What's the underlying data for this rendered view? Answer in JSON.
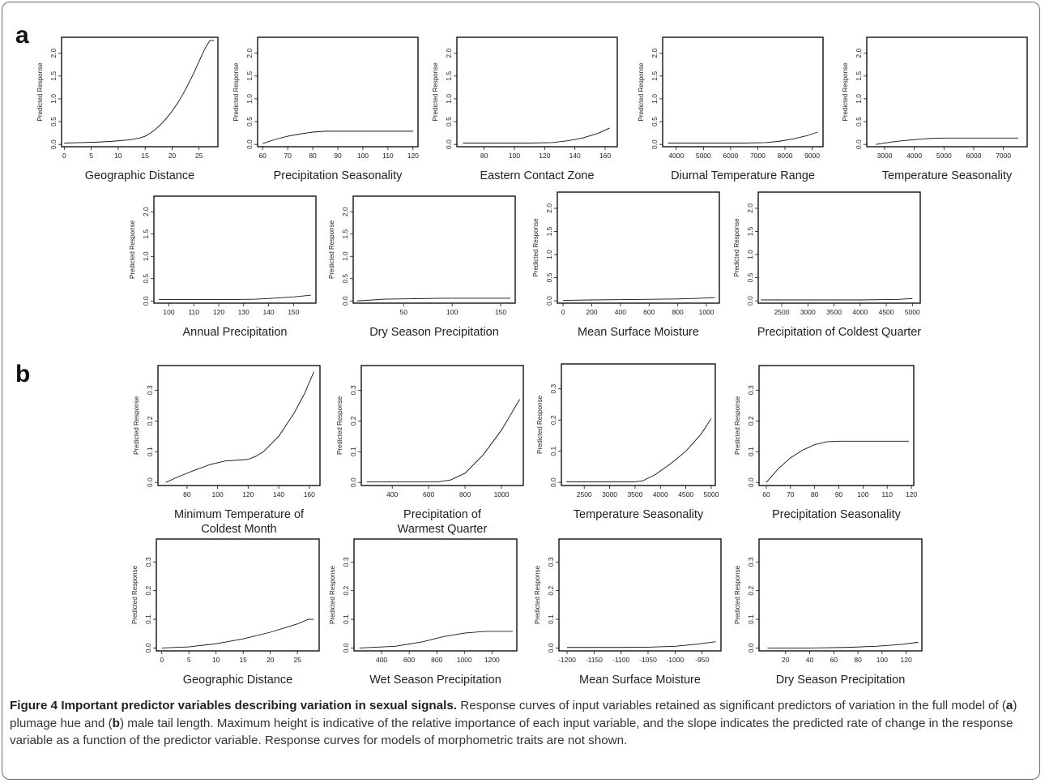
{
  "figure": {
    "panel_letters": [
      "a",
      "b"
    ],
    "caption": {
      "label": "Figure 4",
      "title": "Important predictor variables describing variation in sexual signals.",
      "text_parts": [
        "Response curves of input variables retained as significant predictors of variation in the full model of (",
        "a",
        ") plumage hue and (",
        "b",
        ") male tail length. Maximum height is indicative of the relative importance of each input variable, and the slope indicates the predicted rate of change in the response variable as a function of the predictor variable. Response curves for models of morphometric traits are not shown."
      ]
    }
  },
  "chart_data": [
    {
      "panel": "a",
      "type": "line",
      "xlabel": "Geographic Distance",
      "ylabel": "Predicted Response",
      "xticks": [
        0,
        5,
        10,
        15,
        20,
        25
      ],
      "xlim": [
        -0.5,
        28.5
      ],
      "yticks": [
        0.0,
        0.5,
        1.0,
        1.5,
        2.0
      ],
      "ylim": [
        -0.05,
        2.35
      ],
      "x": [
        0,
        3,
        6,
        9,
        12,
        14,
        15,
        16,
        17,
        18,
        19,
        20,
        21,
        22,
        23,
        24,
        25,
        26,
        27,
        27.8
      ],
      "y": [
        0.03,
        0.04,
        0.05,
        0.07,
        0.1,
        0.14,
        0.18,
        0.25,
        0.34,
        0.45,
        0.58,
        0.73,
        0.9,
        1.1,
        1.32,
        1.56,
        1.82,
        2.08,
        2.28,
        2.28
      ]
    },
    {
      "panel": "a",
      "type": "line",
      "xlabel": "Precipitation Seasonality",
      "ylabel": "Predicted Response",
      "xticks": [
        60,
        70,
        80,
        90,
        100,
        110,
        120
      ],
      "xlim": [
        58,
        122
      ],
      "yticks": [
        0.0,
        0.5,
        1.0,
        1.5,
        2.0
      ],
      "ylim": [
        -0.05,
        2.35
      ],
      "x": [
        60,
        65,
        70,
        75,
        80,
        85,
        90,
        100,
        110,
        120
      ],
      "y": [
        0.02,
        0.11,
        0.18,
        0.23,
        0.27,
        0.29,
        0.29,
        0.29,
        0.29,
        0.29
      ]
    },
    {
      "panel": "a",
      "type": "line",
      "xlabel": "Eastern Contact Zone",
      "ylabel": "Predicted Response",
      "xticks": [
        80,
        100,
        120,
        140,
        160
      ],
      "xlim": [
        62,
        168
      ],
      "yticks": [
        0.0,
        0.5,
        1.0,
        1.5,
        2.0
      ],
      "ylim": [
        -0.05,
        2.35
      ],
      "x": [
        66,
        90,
        110,
        125,
        135,
        145,
        155,
        163
      ],
      "y": [
        0.03,
        0.03,
        0.03,
        0.04,
        0.08,
        0.14,
        0.24,
        0.36
      ]
    },
    {
      "panel": "a",
      "type": "line",
      "xlabel": "Diurnal Temperature Range",
      "ylabel": "Predicted Response",
      "xticks": [
        4000,
        5000,
        6000,
        7000,
        8000,
        9000
      ],
      "xlim": [
        3500,
        9400
      ],
      "yticks": [
        0.0,
        0.5,
        1.0,
        1.5,
        2.0
      ],
      "ylim": [
        -0.05,
        2.35
      ],
      "x": [
        3700,
        5000,
        6500,
        7300,
        7800,
        8300,
        8800,
        9200
      ],
      "y": [
        0.03,
        0.03,
        0.03,
        0.04,
        0.07,
        0.12,
        0.19,
        0.27
      ]
    },
    {
      "panel": "a",
      "type": "line",
      "xlabel": "Temperature Seasonality",
      "ylabel": "Predicted Response",
      "xticks": [
        3000,
        4000,
        5000,
        6000,
        7000
      ],
      "xlim": [
        2400,
        7800
      ],
      "yticks": [
        0.0,
        0.5,
        1.0,
        1.5,
        2.0
      ],
      "ylim": [
        -0.05,
        2.35
      ],
      "x": [
        2700,
        3300,
        3900,
        4500,
        5000,
        6000,
        7500
      ],
      "y": [
        0.0,
        0.06,
        0.1,
        0.13,
        0.14,
        0.14,
        0.14
      ]
    },
    {
      "panel": "a",
      "type": "line",
      "xlabel": "Annual Precipitation",
      "ylabel": "Predicted Response",
      "xticks": [
        100,
        110,
        120,
        130,
        140,
        150
      ],
      "xlim": [
        94,
        159
      ],
      "yticks": [
        0.0,
        0.5,
        1.0,
        1.5,
        2.0
      ],
      "ylim": [
        -0.05,
        2.35
      ],
      "x": [
        96,
        110,
        125,
        135,
        142,
        150,
        157
      ],
      "y": [
        0.03,
        0.03,
        0.03,
        0.04,
        0.06,
        0.09,
        0.13
      ]
    },
    {
      "panel": "a",
      "type": "line",
      "xlabel": "Dry Season Precipitation",
      "ylabel": "Predicted Response",
      "xticks": [
        50,
        100,
        150
      ],
      "xlim": [
        -2,
        165
      ],
      "yticks": [
        0.0,
        0.5,
        1.0,
        1.5,
        2.0
      ],
      "ylim": [
        -0.05,
        2.35
      ],
      "x": [
        2,
        30,
        60,
        90,
        120,
        160
      ],
      "y": [
        0.0,
        0.04,
        0.05,
        0.06,
        0.06,
        0.06
      ]
    },
    {
      "panel": "a",
      "type": "line",
      "xlabel": "Mean Surface Moisture",
      "ylabel": "Predicted Response",
      "xticks": [
        0,
        200,
        400,
        600,
        800,
        1000
      ],
      "xlim": [
        -40,
        1090
      ],
      "yticks": [
        0.0,
        0.5,
        1.0,
        1.5,
        2.0
      ],
      "ylim": [
        -0.05,
        2.35
      ],
      "x": [
        0,
        200,
        500,
        800,
        1000,
        1060
      ],
      "y": [
        0.01,
        0.02,
        0.03,
        0.04,
        0.06,
        0.07
      ]
    },
    {
      "panel": "a",
      "type": "line",
      "xlabel": "Precipitation of Coldest Quarter",
      "ylabel": "Predicted Response",
      "xticks": [
        2500,
        3000,
        3500,
        4000,
        4500,
        5000
      ],
      "xlim": [
        2050,
        5150
      ],
      "yticks": [
        0.0,
        0.5,
        1.0,
        1.5,
        2.0
      ],
      "ylim": [
        -0.05,
        2.35
      ],
      "x": [
        2100,
        3000,
        4000,
        4700,
        5000
      ],
      "y": [
        0.02,
        0.02,
        0.02,
        0.03,
        0.05
      ]
    },
    {
      "panel": "b",
      "type": "line",
      "xlabel": "Minimum Temperature of\nColdest Month",
      "ylabel": "Predicted Response",
      "xticks": [
        80,
        100,
        120,
        140,
        160
      ],
      "xlim": [
        61,
        167
      ],
      "yticks": [
        0.0,
        0.1,
        0.2,
        0.3
      ],
      "ylim": [
        -0.01,
        0.38
      ],
      "x": [
        66,
        75,
        85,
        95,
        105,
        115,
        120,
        125,
        130,
        140,
        150,
        157,
        163
      ],
      "y": [
        0.0,
        0.02,
        0.04,
        0.058,
        0.07,
        0.073,
        0.075,
        0.085,
        0.1,
        0.15,
        0.225,
        0.29,
        0.36
      ]
    },
    {
      "panel": "b",
      "type": "line",
      "xlabel": "Precipitation of\nWarmest Quarter",
      "ylabel": "Predicted Response",
      "xticks": [
        400,
        600,
        800,
        1000
      ],
      "xlim": [
        230,
        1120
      ],
      "yticks": [
        0.0,
        0.1,
        0.2,
        0.3
      ],
      "ylim": [
        -0.01,
        0.38
      ],
      "x": [
        260,
        500,
        650,
        720,
        800,
        900,
        1000,
        1100
      ],
      "y": [
        0.002,
        0.002,
        0.002,
        0.008,
        0.03,
        0.09,
        0.17,
        0.27
      ]
    },
    {
      "panel": "b",
      "type": "line",
      "xlabel": "Temperature Seasonality",
      "ylabel": "Predicted Response",
      "xticks": [
        2500,
        3000,
        3500,
        4000,
        4500,
        5000
      ],
      "xlim": [
        2050,
        5080
      ],
      "yticks": [
        0.0,
        0.1,
        0.2,
        0.3
      ],
      "ylim": [
        -0.01,
        0.38
      ],
      "x": [
        2150,
        3000,
        3500,
        3650,
        3900,
        4200,
        4500,
        4800,
        5000
      ],
      "y": [
        0.002,
        0.002,
        0.002,
        0.005,
        0.025,
        0.06,
        0.1,
        0.155,
        0.205
      ]
    },
    {
      "panel": "b",
      "type": "line",
      "xlabel": "Precipitation Seasonality",
      "ylabel": "Predicted Response",
      "xticks": [
        60,
        70,
        80,
        90,
        100,
        110,
        120
      ],
      "xlim": [
        57,
        121
      ],
      "yticks": [
        0.0,
        0.1,
        0.2,
        0.3
      ],
      "ylim": [
        -0.01,
        0.38
      ],
      "x": [
        60,
        65,
        70,
        75,
        80,
        85,
        90,
        100,
        110,
        119
      ],
      "y": [
        0.0,
        0.045,
        0.08,
        0.105,
        0.123,
        0.132,
        0.134,
        0.134,
        0.134,
        0.134
      ]
    },
    {
      "panel": "b",
      "type": "line",
      "xlabel": "Geographic Distance",
      "ylabel": "Predicted Response",
      "xticks": [
        0,
        5,
        10,
        15,
        20,
        25
      ],
      "xlim": [
        -1,
        29
      ],
      "yticks": [
        0.0,
        0.1,
        0.2,
        0.3
      ],
      "ylim": [
        -0.01,
        0.38
      ],
      "x": [
        0,
        5,
        10,
        15,
        20,
        25,
        27,
        28
      ],
      "y": [
        0.0,
        0.004,
        0.015,
        0.032,
        0.055,
        0.084,
        0.1,
        0.1
      ]
    },
    {
      "panel": "b",
      "type": "line",
      "xlabel": "Wet Season Precipitation",
      "ylabel": "Predicted Response",
      "xticks": [
        400,
        600,
        800,
        1000,
        1200
      ],
      "xlim": [
        200,
        1380
      ],
      "yticks": [
        0.0,
        0.1,
        0.2,
        0.3
      ],
      "ylim": [
        -0.01,
        0.38
      ],
      "x": [
        240,
        500,
        700,
        850,
        1000,
        1150,
        1350
      ],
      "y": [
        0.0,
        0.006,
        0.022,
        0.04,
        0.052,
        0.058,
        0.058
      ]
    },
    {
      "panel": "b",
      "type": "line",
      "xlabel": "Mean Surface Moisture",
      "ylabel": "Predicted Response",
      "xticks": [
        -1200,
        -1150,
        -1100,
        -1050,
        -1000,
        -950
      ],
      "xlim": [
        -1215,
        -915
      ],
      "yticks": [
        0.0,
        0.1,
        0.2,
        0.3
      ],
      "ylim": [
        -0.01,
        0.38
      ],
      "x": [
        -1200,
        -1100,
        -1050,
        -1000,
        -960,
        -925
      ],
      "y": [
        0.002,
        0.002,
        0.003,
        0.006,
        0.013,
        0.022
      ]
    },
    {
      "panel": "b",
      "type": "line",
      "xlabel": "Dry Season Precipitation",
      "ylabel": "Predicted Response",
      "xticks": [
        20,
        40,
        60,
        80,
        100,
        120
      ],
      "xlim": [
        -2,
        133
      ],
      "yticks": [
        0.0,
        0.1,
        0.2,
        0.3
      ],
      "ylim": [
        -0.01,
        0.38
      ],
      "x": [
        5,
        40,
        70,
        95,
        115,
        130
      ],
      "y": [
        0.0,
        0.0,
        0.002,
        0.006,
        0.012,
        0.02
      ]
    }
  ]
}
